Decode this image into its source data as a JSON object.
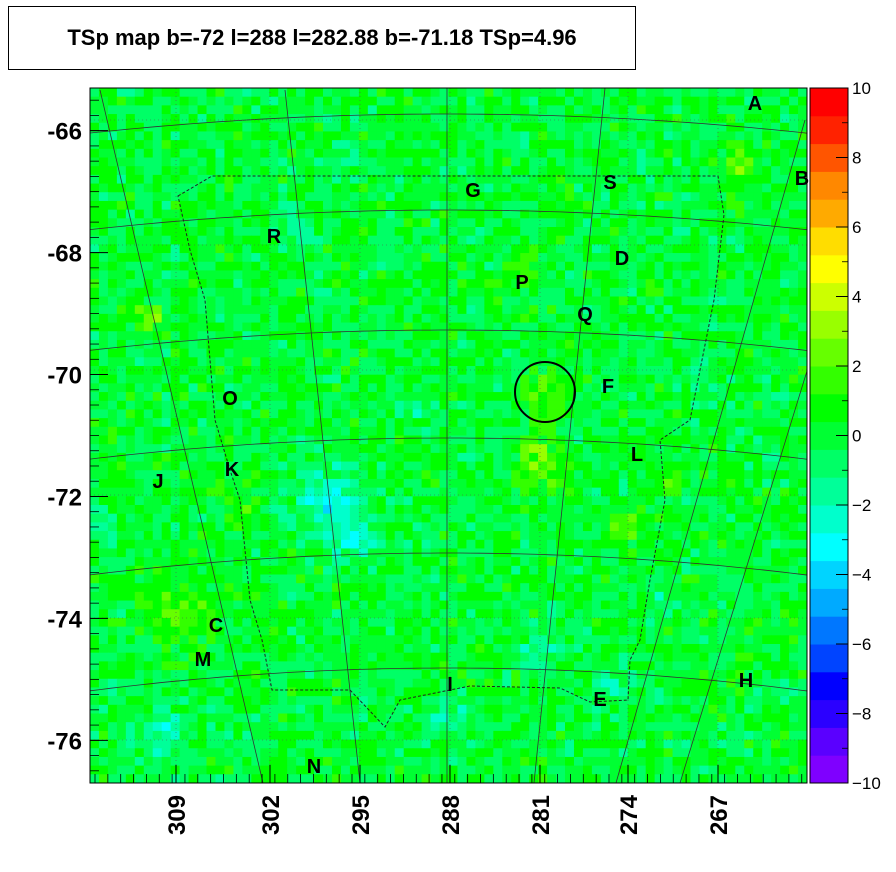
{
  "chart_data": {
    "type": "heatmap",
    "title": "TSp map b=-72 l=288 l=282.88 b=-71.18 TSp=4.96",
    "xlabel": "",
    "ylabel": "",
    "x_ticks": [
      "309",
      "302",
      "295",
      "288",
      "281",
      "274",
      "267"
    ],
    "y_ticks": [
      "-66",
      "-68",
      "-70",
      "-72",
      "-74",
      "-76"
    ],
    "ylim": [
      -76.7,
      -65.3
    ],
    "z_ticks": [
      "10",
      "8",
      "6",
      "4",
      "2",
      "0",
      "−2",
      "−4",
      "−6",
      "−8",
      "−10"
    ],
    "zlim": [
      -10,
      10
    ],
    "colorbar_colors": [
      "#7f00ff",
      "#5a00ff",
      "#2b00ff",
      "#0000ff",
      "#0044ff",
      "#0077ff",
      "#00aaff",
      "#00d4ff",
      "#00ffff",
      "#00ffcc",
      "#00ff99",
      "#00ff66",
      "#00ff33",
      "#00ff00",
      "#33ff00",
      "#66ff00",
      "#99ff00",
      "#ccff00",
      "#ffff00",
      "#ffdd00",
      "#ffaa00",
      "#ff8800",
      "#ff5500",
      "#ff2200",
      "#ff0000"
    ],
    "center_marker": {
      "l": 282.88,
      "b": -71.18,
      "TSp": 4.96
    },
    "sources": [
      {
        "label": "A"
      },
      {
        "label": "B"
      },
      {
        "label": "G"
      },
      {
        "label": "S"
      },
      {
        "label": "R"
      },
      {
        "label": "D"
      },
      {
        "label": "P"
      },
      {
        "label": "Q"
      },
      {
        "label": "O"
      },
      {
        "label": "F"
      },
      {
        "label": "L"
      },
      {
        "label": "J"
      },
      {
        "label": "K"
      },
      {
        "label": "C"
      },
      {
        "label": "M"
      },
      {
        "label": "I"
      },
      {
        "label": "H"
      },
      {
        "label": "E"
      },
      {
        "label": "N"
      }
    ]
  }
}
